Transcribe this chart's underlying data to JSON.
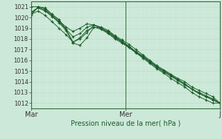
{
  "title": "",
  "xlabel": "Pression niveau de la mer( hPa )",
  "ylabel": "",
  "bg_color": "#cce8d8",
  "grid_major_color": "#c0dcc8",
  "grid_minor_color": "#d8eee0",
  "line_color": "#1a5c28",
  "marker_color": "#1a5c28",
  "border_color": "#2a6b30",
  "ylim": [
    1011.5,
    1021.5
  ],
  "yticks": [
    1012,
    1013,
    1014,
    1015,
    1016,
    1017,
    1018,
    1019,
    1020,
    1021
  ],
  "xlim": [
    0,
    48
  ],
  "xtick_positions": [
    0,
    24,
    48
  ],
  "xtick_labels": [
    "Mar",
    "Mer",
    "J"
  ],
  "vline_x": 24,
  "series": [
    [
      1020.3,
      1020.6,
      1020.2,
      1019.6,
      1019.0,
      1018.4,
      1017.7,
      1018.1,
      1018.8,
      1019.1,
      1018.9,
      1018.5,
      1018.0,
      1017.6,
      1017.2,
      1016.7,
      1016.2,
      1015.7,
      1015.2,
      1014.8,
      1014.3,
      1013.9,
      1013.5,
      1013.0,
      1012.6,
      1012.3,
      1012.0,
      1012.0
    ],
    [
      1021.0,
      1021.0,
      1020.8,
      1020.2,
      1019.7,
      1019.1,
      1018.7,
      1019.0,
      1019.4,
      1019.3,
      1019.0,
      1018.7,
      1018.2,
      1017.7,
      1017.3,
      1016.8,
      1016.4,
      1015.9,
      1015.4,
      1015.0,
      1014.6,
      1014.2,
      1013.8,
      1013.3,
      1013.0,
      1012.7,
      1012.4,
      1012.0
    ],
    [
      1020.5,
      1020.9,
      1020.6,
      1020.1,
      1019.5,
      1018.8,
      1017.6,
      1017.4,
      1018.1,
      1019.1,
      1019.0,
      1018.6,
      1018.1,
      1017.7,
      1017.2,
      1016.7,
      1016.3,
      1015.8,
      1015.3,
      1014.9,
      1014.5,
      1014.1,
      1013.7,
      1013.3,
      1012.9,
      1012.6,
      1012.3,
      1012.0
    ],
    [
      1020.4,
      1020.9,
      1020.7,
      1020.1,
      1019.6,
      1018.9,
      1018.2,
      1018.5,
      1019.1,
      1019.3,
      1019.0,
      1018.6,
      1018.2,
      1017.8,
      1017.3,
      1016.8,
      1016.3,
      1015.9,
      1015.4,
      1015.0,
      1014.6,
      1014.2,
      1013.8,
      1013.3,
      1012.9,
      1012.6,
      1012.3,
      1012.0
    ],
    [
      1020.2,
      1021.0,
      1020.9,
      1020.3,
      1019.8,
      1018.9,
      1017.7,
      1018.0,
      1018.6,
      1019.3,
      1019.1,
      1018.8,
      1018.3,
      1017.9,
      1017.5,
      1017.0,
      1016.5,
      1016.0,
      1015.5,
      1015.1,
      1014.7,
      1014.3,
      1014.0,
      1013.5,
      1013.2,
      1012.9,
      1012.6,
      1012.0
    ]
  ]
}
